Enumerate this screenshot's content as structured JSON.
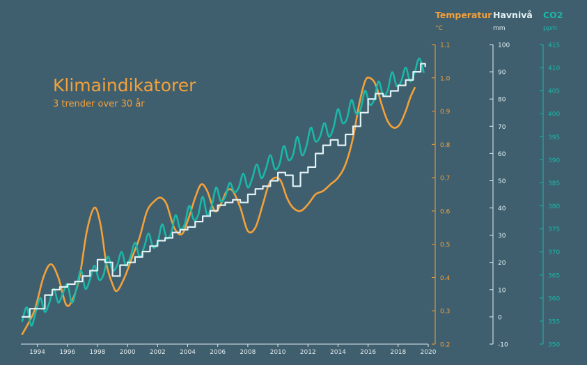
{
  "colors": {
    "background": "#3f5f6e",
    "temperature": "#f4a13a",
    "sea_level": "#e2f2f6",
    "co2": "#1ab8a8",
    "x_axis": "#dfe8ec"
  },
  "title": "Klimaindikatorer",
  "subtitle": "3 trender over 30 år",
  "chart_data": {
    "type": "line",
    "title": "Klimaindikatorer",
    "subtitle": "3 trender over 30 år",
    "x_range": [
      1993,
      2020
    ],
    "x_ticks": [
      1994,
      1996,
      1998,
      2000,
      2002,
      2004,
      2006,
      2008,
      2010,
      2012,
      2014,
      2016,
      2018,
      2020
    ],
    "grid": false,
    "legend": "axis titles at top-right",
    "axes": [
      {
        "id": "temperature",
        "title": "Temperatur",
        "unit": "°C",
        "ylim": [
          0.2,
          1.1
        ],
        "ticks": [
          0.2,
          0.3,
          0.4,
          0.5,
          0.6,
          0.7,
          0.8,
          0.9,
          1.0,
          1.1
        ]
      },
      {
        "id": "sea_level",
        "title": "Havnivå",
        "unit": "mm",
        "ylim": [
          -10,
          100
        ],
        "ticks": [
          -10,
          0,
          10,
          20,
          30,
          40,
          50,
          60,
          70,
          80,
          90,
          100
        ]
      },
      {
        "id": "co2",
        "title": "CO2",
        "unit": "ppm",
        "ylim": [
          350,
          415
        ],
        "ticks": [
          350,
          355,
          360,
          365,
          370,
          375,
          380,
          385,
          390,
          395,
          400,
          405,
          410,
          415
        ]
      }
    ],
    "series": [
      {
        "name": "Temperatur",
        "axis": "temperature",
        "x": [
          1993.0,
          1993.8,
          1994.4,
          1994.9,
          1995.4,
          1995.9,
          1996.3,
          1996.8,
          1997.3,
          1997.8,
          1998.2,
          1998.6,
          1999.0,
          1999.3,
          1999.8,
          2000.3,
          2000.8,
          2001.3,
          2001.8,
          2002.2,
          2002.6,
          2003.1,
          2003.6,
          2004.0,
          2004.5,
          2004.9,
          2005.3,
          2005.8,
          2006.2,
          2006.6,
          2007.0,
          2007.5,
          2008.0,
          2008.5,
          2009.0,
          2009.4,
          2009.8,
          2010.2,
          2010.6,
          2011.0,
          2011.5,
          2012.0,
          2012.5,
          2013.0,
          2013.5,
          2014.0,
          2014.5,
          2015.0,
          2015.4,
          2015.8,
          2016.1,
          2016.5,
          2016.9,
          2017.3,
          2017.7,
          2018.1,
          2018.5,
          2018.8,
          2019.1
        ],
        "y": [
          0.23,
          0.3,
          0.4,
          0.44,
          0.4,
          0.32,
          0.33,
          0.4,
          0.54,
          0.61,
          0.56,
          0.44,
          0.38,
          0.36,
          0.4,
          0.46,
          0.52,
          0.6,
          0.63,
          0.64,
          0.62,
          0.55,
          0.53,
          0.57,
          0.64,
          0.68,
          0.66,
          0.6,
          0.62,
          0.66,
          0.66,
          0.61,
          0.54,
          0.55,
          0.62,
          0.68,
          0.7,
          0.69,
          0.64,
          0.61,
          0.6,
          0.62,
          0.65,
          0.66,
          0.68,
          0.7,
          0.74,
          0.82,
          0.92,
          0.99,
          1.0,
          0.98,
          0.92,
          0.87,
          0.85,
          0.86,
          0.9,
          0.94,
          0.97
        ]
      },
      {
        "name": "Havnivå",
        "axis": "sea_level",
        "x": [
          1993.0,
          1993.5,
          1994.0,
          1994.5,
          1995.0,
          1995.5,
          1996.0,
          1996.5,
          1997.0,
          1997.5,
          1998.0,
          1998.5,
          1999.0,
          1999.5,
          2000.0,
          2000.5,
          2001.0,
          2001.5,
          2002.0,
          2002.5,
          2003.0,
          2003.5,
          2004.0,
          2004.5,
          2005.0,
          2005.5,
          2006.0,
          2006.5,
          2007.0,
          2007.5,
          2008.0,
          2008.5,
          2009.0,
          2009.5,
          2010.0,
          2010.5,
          2011.0,
          2011.5,
          2012.0,
          2012.5,
          2013.0,
          2013.5,
          2014.0,
          2014.5,
          2015.0,
          2015.5,
          2016.0,
          2016.5,
          2017.0,
          2017.5,
          2018.0,
          2018.5,
          2019.0,
          2019.5,
          2019.8
        ],
        "y": [
          0,
          3,
          3,
          8,
          10,
          11,
          12,
          13,
          15,
          17,
          21,
          20,
          15,
          19,
          20,
          22,
          24,
          26,
          28,
          29,
          31,
          32,
          33,
          35,
          37,
          39,
          41,
          42,
          43,
          42,
          45,
          47,
          48,
          50,
          53,
          52,
          48,
          53,
          55,
          60,
          63,
          65,
          63,
          67,
          70,
          75,
          80,
          82,
          81,
          83,
          85,
          87,
          90,
          93,
          92
        ]
      },
      {
        "name": "CO2",
        "axis": "co2",
        "x": [
          1993.0,
          1993.3,
          1993.6,
          1993.9,
          1994.2,
          1994.5,
          1994.8,
          1995.1,
          1995.4,
          1995.7,
          1996.0,
          1996.3,
          1996.6,
          1996.9,
          1997.2,
          1997.5,
          1997.8,
          1998.1,
          1998.4,
          1998.7,
          1999.0,
          1999.3,
          1999.6,
          1999.9,
          2000.2,
          2000.5,
          2000.8,
          2001.1,
          2001.4,
          2001.7,
          2002.0,
          2002.3,
          2002.6,
          2002.9,
          2003.2,
          2003.5,
          2003.8,
          2004.1,
          2004.4,
          2004.7,
          2005.0,
          2005.3,
          2005.6,
          2005.9,
          2006.2,
          2006.5,
          2006.8,
          2007.1,
          2007.4,
          2007.7,
          2008.0,
          2008.3,
          2008.6,
          2008.9,
          2009.2,
          2009.5,
          2009.8,
          2010.1,
          2010.4,
          2010.7,
          2011.0,
          2011.3,
          2011.6,
          2011.9,
          2012.2,
          2012.5,
          2012.8,
          2013.1,
          2013.4,
          2013.7,
          2014.0,
          2014.3,
          2014.6,
          2014.9,
          2015.2,
          2015.5,
          2015.8,
          2016.1,
          2016.4,
          2016.7,
          2017.0,
          2017.3,
          2017.6,
          2017.9,
          2018.2,
          2018.5,
          2018.8,
          2019.1,
          2019.4,
          2019.7
        ],
        "y": [
          355,
          358,
          354,
          357,
          360,
          357,
          359,
          362,
          359,
          361,
          363,
          359,
          362,
          366,
          362,
          364,
          367,
          364,
          365,
          369,
          366,
          367,
          370,
          367,
          369,
          372,
          369,
          371,
          374,
          371,
          372,
          376,
          373,
          374,
          378,
          375,
          376,
          380,
          377,
          378,
          382,
          378,
          380,
          384,
          381,
          382,
          385,
          383,
          384,
          387,
          384,
          386,
          389,
          386,
          388,
          391,
          388,
          389,
          393,
          390,
          391,
          395,
          391,
          393,
          397,
          394,
          395,
          398,
          395,
          397,
          401,
          398,
          399,
          403,
          400,
          401,
          405,
          402,
          403,
          407,
          404,
          405,
          409,
          406,
          407,
          410,
          407,
          409,
          412,
          409
        ]
      }
    ]
  }
}
